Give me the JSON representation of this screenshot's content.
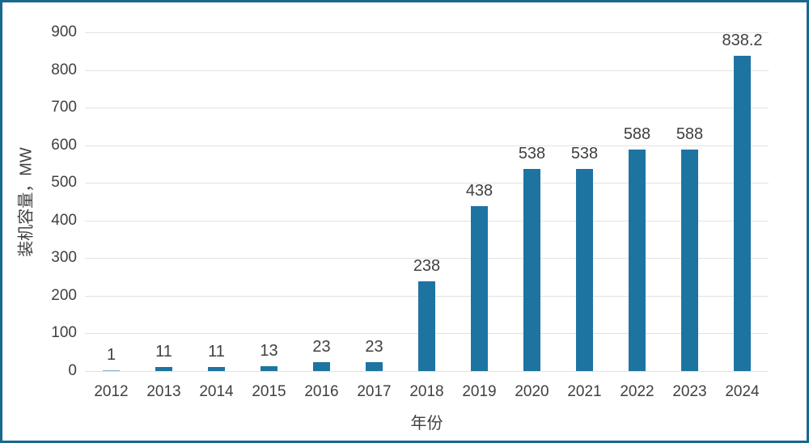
{
  "chart_data": {
    "type": "bar",
    "title": "",
    "xlabel": "年份",
    "ylabel": "装机容量，MW",
    "categories": [
      "2012",
      "2013",
      "2014",
      "2015",
      "2016",
      "2017",
      "2018",
      "2019",
      "2020",
      "2021",
      "2022",
      "2023",
      "2024"
    ],
    "values": [
      1,
      11,
      11,
      13,
      23,
      23,
      238,
      438,
      538,
      538,
      588,
      588,
      838.2
    ],
    "value_labels": [
      "1",
      "11",
      "11",
      "13",
      "23",
      "23",
      "238",
      "438",
      "538",
      "538",
      "588",
      "588",
      "838.2"
    ],
    "ylim": [
      0,
      900
    ],
    "yticks": [
      0,
      100,
      200,
      300,
      400,
      500,
      600,
      700,
      800,
      900
    ],
    "grid": true,
    "legend": "none",
    "colors": {
      "bar": "#1E74A1",
      "grid": "#E2E2E2",
      "text": "#404040",
      "frame_border": "#19688E"
    }
  }
}
